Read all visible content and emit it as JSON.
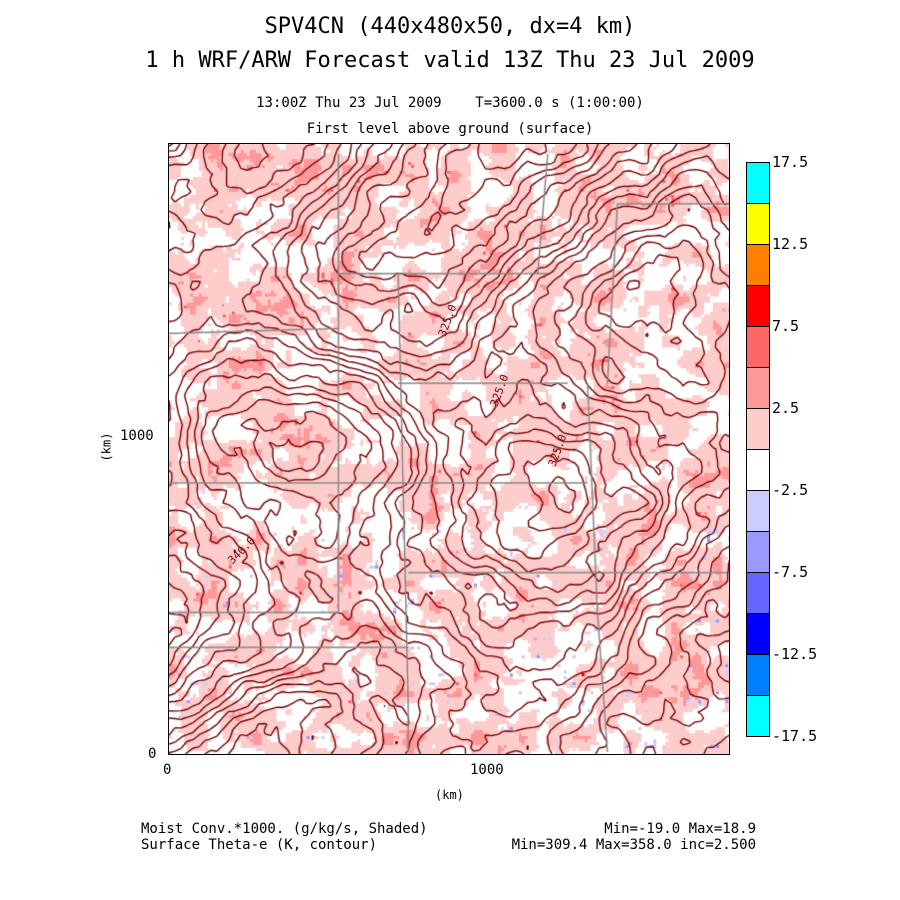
{
  "header": {
    "title": "SPV4CN (440x480x50, dx=4 km)",
    "subtitle": "1 h WRF/ARW Forecast valid 13Z Thu 23 Jul 2009",
    "time_line": "13:00Z Thu 23 Jul 2009    T=3600.0 s (1:00:00)",
    "level_line": "First level above ground (surface)"
  },
  "chart_data": {
    "type": "heatmap",
    "xlabel": "(km)",
    "ylabel": "(km)",
    "xlim": [
      0,
      1760
    ],
    "ylim": [
      0,
      1920
    ],
    "x_ticks": [
      "0",
      "1000"
    ],
    "y_ticks": [
      "0",
      "1000"
    ],
    "shaded_field": "Moist Conv.*1000. (g/kg/s, Shaded)",
    "shaded_stats": "Min=-19.0 Max=18.9",
    "contour_field": "Surface Theta-e (K, contour)",
    "contour_stats": "Min=309.4 Max=358.0 inc=2.500",
    "contour_labels": [
      "325.0",
      "325.0",
      "325.0",
      "340.0"
    ],
    "colorbar": {
      "levels": [
        17.5,
        15,
        12.5,
        10,
        7.5,
        5,
        2.5,
        -2.5,
        -5,
        -7.5,
        -10,
        -12.5,
        -15,
        -17.5
      ],
      "tick_labels": [
        "17.5",
        "12.5",
        "7.5",
        "2.5",
        "-2.5",
        "-7.5",
        "-12.5",
        "-17.5"
      ],
      "colors": [
        "#00ffff",
        "#ffff00",
        "#ff8000",
        "#ff0000",
        "#ff6666",
        "#ff9999",
        "#ffcccc",
        "#ffffff",
        "#ccccff",
        "#9999ff",
        "#6666ff",
        "#0000ff",
        "#0080ff",
        "#00ffff"
      ]
    },
    "contour_color": "#7a0000",
    "boundary_color": "#888888"
  }
}
